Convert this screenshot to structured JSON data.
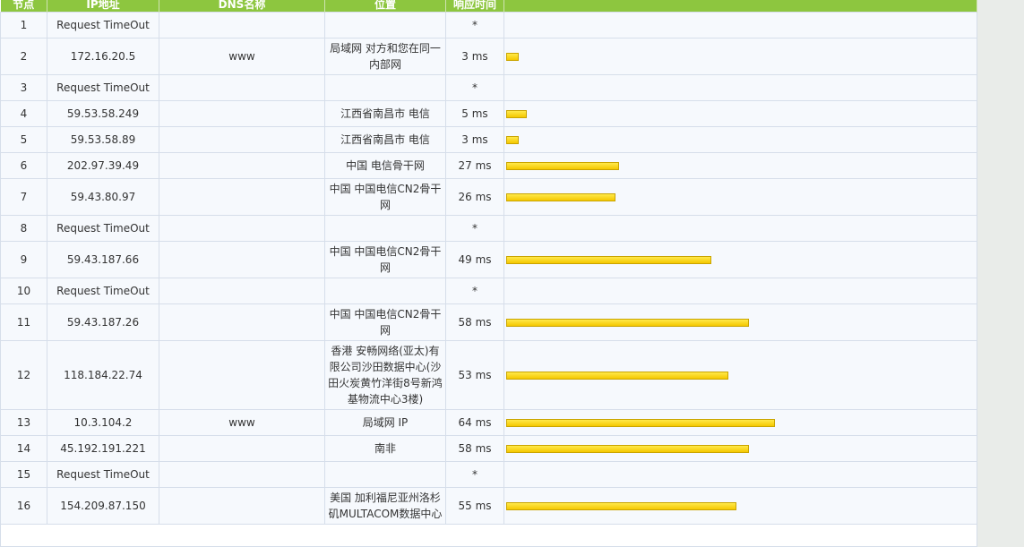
{
  "header": [
    "节点",
    "IP地址",
    "DNS名称",
    "位置",
    "响应时间"
  ],
  "rows": [
    {
      "hop": "1",
      "ip": "Request TimeOut",
      "time_label": "*",
      "time": null
    },
    {
      "hop": "2",
      "ip": "172.16.20.5",
      "dns": "www",
      "location": "局域网 对方和您在同一内部网",
      "time_label": "3 ms",
      "time": 3
    },
    {
      "hop": "3",
      "ip": "Request TimeOut",
      "time_label": "*",
      "time": null
    },
    {
      "hop": "4",
      "ip": "59.53.58.249",
      "location": "江西省南昌市 电信",
      "time_label": "5 ms",
      "time": 5
    },
    {
      "hop": "5",
      "ip": "59.53.58.89",
      "location": "江西省南昌市 电信",
      "time_label": "3 ms",
      "time": 3
    },
    {
      "hop": "6",
      "ip": "202.97.39.49",
      "location": "中国 电信骨干网",
      "time_label": "27 ms",
      "time": 27
    },
    {
      "hop": "7",
      "ip": "59.43.80.97",
      "location": "中国 中国电信CN2骨干网",
      "time_label": "26 ms",
      "time": 26
    },
    {
      "hop": "8",
      "ip": "Request TimeOut",
      "time_label": "*",
      "time": null
    },
    {
      "hop": "9",
      "ip": "59.43.187.66",
      "location": "中国 中国电信CN2骨干网",
      "time_label": "49 ms",
      "time": 49
    },
    {
      "hop": "10",
      "ip": "Request TimeOut",
      "time_label": "*",
      "time": null
    },
    {
      "hop": "11",
      "ip": "59.43.187.26",
      "location": "中国 中国电信CN2骨干网",
      "time_label": "58 ms",
      "time": 58
    },
    {
      "hop": "12",
      "ip": "118.184.22.74",
      "location": "香港 安畅网络(亚太)有限公司沙田数据中心(沙田火炭黄竹洋街8号新鸿基物流中心3楼)",
      "time_label": "53 ms",
      "time": 53
    },
    {
      "hop": "13",
      "ip": "10.3.104.2",
      "dns": "www",
      "location": "局域网 IP",
      "time_label": "64 ms",
      "time": 64
    },
    {
      "hop": "14",
      "ip": "45.192.191.221",
      "location": "南非",
      "time_label": "58 ms",
      "time": 58
    },
    {
      "hop": "15",
      "ip": "Request TimeOut",
      "time_label": "*",
      "time": null
    },
    {
      "hop": "16",
      "ip": "154.209.87.150",
      "location": "美国 加利福尼亚州洛杉矶MULTACOM数据中心",
      "time_label": "55 ms",
      "time": 55
    }
  ]
}
